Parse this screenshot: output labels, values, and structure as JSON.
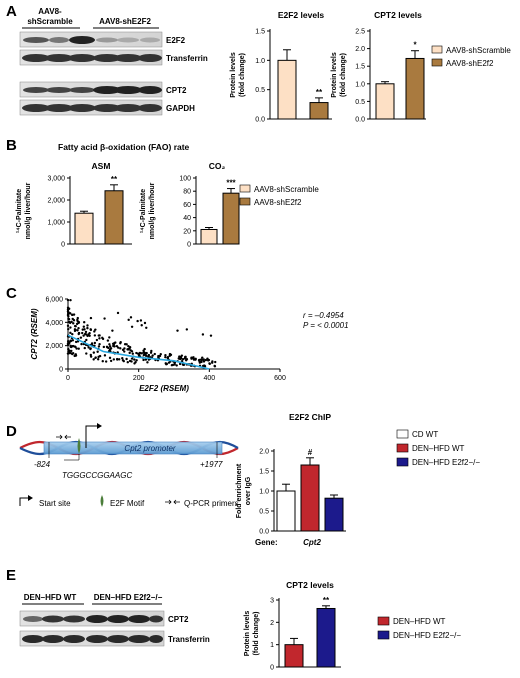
{
  "panels": {
    "A": {
      "letter": "A",
      "blot": {
        "group1": "AAV8-\nshScramble",
        "group1_l1": "AAV8-",
        "group1_l2": "shScramble",
        "group2": "AAV8-shE2F2",
        "bands": [
          "E2F2",
          "Transferrin",
          "CPT2",
          "GAPDH"
        ]
      },
      "legend": [
        "AAV8-shScramble",
        "AAV8-shE2f2"
      ]
    },
    "B": {
      "letter": "B",
      "title": "Fatty acid β-oxidation (FAO) rate",
      "ylabel_l1": "¹⁴C-Palmitate",
      "ylabel_l2": "nmol/g liver/hour",
      "legend": [
        "AAV8-shScramble",
        "AAV8-shE2f2"
      ]
    },
    "C": {
      "letter": "C",
      "r_text": "r = –0.4954",
      "p_text": "P = < 0.0001"
    },
    "D": {
      "letter": "D",
      "promoter_label": "Cpt2 promoter",
      "start": "-824",
      "end": "+1977",
      "motif_seq": "TGGGCCGGAAGC",
      "key": [
        "Start site",
        "E2F Motif",
        "Q-PCR primers"
      ],
      "gene_label": "Gene:",
      "gene": "Cpt2",
      "legend": [
        "CD WT",
        "DEN–HFD WT",
        "DEN–HFD E2f2−/−"
      ]
    },
    "E": {
      "letter": "E",
      "blot": {
        "group1": "DEN–HFD WT",
        "group2": "DEN–HFD E2f2−/−",
        "bands": [
          "CPT2",
          "Transferrin"
        ]
      },
      "legend": [
        "DEN–HFD WT",
        "DEN–HFD E2f2−/−"
      ]
    }
  },
  "colors": {
    "scramble": "#fde0c5",
    "she2f2": "#a97a3f",
    "cd_wt": "#ffffff",
    "den_wt": "#c1272d",
    "den_ko": "#1c1a8c",
    "line": "#29a8e0"
  },
  "chart_data": [
    {
      "id": "A-E2F2",
      "type": "bar",
      "title": "E2F2 levels",
      "ylabel": "Protein levels (fold change)",
      "categories": [
        "AAV8-shScramble",
        "AAV8-shE2f2"
      ],
      "values": [
        1.0,
        0.28
      ],
      "errors": [
        0.18,
        0.08
      ],
      "sig": [
        "",
        "**"
      ],
      "ylim": [
        0,
        1.5
      ],
      "ticks": [
        "0.0",
        "0.5",
        "1.0",
        "1.5"
      ]
    },
    {
      "id": "A-CPT2",
      "type": "bar",
      "title": "CPT2 levels",
      "ylabel": "Protein levels (fold change)",
      "categories": [
        "AAV8-shScramble",
        "AAV8-shE2f2"
      ],
      "values": [
        1.0,
        1.72
      ],
      "errors": [
        0.06,
        0.22
      ],
      "sig": [
        "",
        "*"
      ],
      "ylim": [
        0,
        2.5
      ],
      "ticks": [
        "0.0",
        "0.5",
        "1.0",
        "1.5",
        "2.0",
        "2.5"
      ]
    },
    {
      "id": "B-ASM",
      "type": "bar",
      "title": "ASM",
      "ylabel": "¹⁴C-Palmitate nmol/g liver/hour",
      "categories": [
        "AAV8-shScramble",
        "AAV8-shE2f2"
      ],
      "values": [
        1400,
        2420
      ],
      "errors": [
        90,
        270
      ],
      "sig": [
        "",
        "**"
      ],
      "ylim": [
        0,
        3000
      ],
      "ticks": [
        "0",
        "1,000",
        "2,000",
        "3,000"
      ]
    },
    {
      "id": "B-CO2",
      "type": "bar",
      "title": "CO₂",
      "ylabel": "¹⁴C-Palmitate nmol/g liver/hour",
      "categories": [
        "AAV8-shScramble",
        "AAV8-shE2f2"
      ],
      "values": [
        22,
        77
      ],
      "errors": [
        3,
        7
      ],
      "sig": [
        "",
        "***"
      ],
      "ylim": [
        0,
        100
      ],
      "ticks": [
        "0",
        "20",
        "40",
        "60",
        "80",
        "100"
      ]
    },
    {
      "id": "C",
      "type": "scatter",
      "xlabel": "E2F2 (RSEM)",
      "ylabel": "CPT2 (RSEM)",
      "xlim": [
        0,
        600
      ],
      "ylim": [
        0,
        6000
      ],
      "xticks": [
        "0",
        "200",
        "400",
        "600"
      ],
      "yticks": [
        "0",
        "2,000",
        "4,000",
        "6,000"
      ],
      "n_points": 360,
      "point_color": "#000000",
      "trend_x": [
        0,
        100,
        200,
        300,
        400
      ],
      "trend_y": [
        2900,
        1500,
        1000,
        700,
        0
      ]
    },
    {
      "id": "D",
      "type": "bar",
      "title": "E2F2 ChIP",
      "ylabel": "Fold enrichment over IgG",
      "categories": [
        "CD WT",
        "DEN–HFD WT",
        "DEN–HFD E2f2−/−"
      ],
      "values": [
        1.0,
        1.65,
        0.82
      ],
      "errors": [
        0.17,
        0.18,
        0.08
      ],
      "sig": [
        "",
        "#",
        ""
      ],
      "ylim": [
        0,
        2.0
      ],
      "ticks": [
        "0.0",
        "0.5",
        "1.0",
        "1.5",
        "2.0"
      ]
    },
    {
      "id": "E",
      "type": "bar",
      "title": "CPT2 levels",
      "ylabel": "Protein levels (fold change)",
      "categories": [
        "DEN–HFD WT",
        "DEN–HFD E2f2−/−"
      ],
      "values": [
        1.0,
        2.62
      ],
      "errors": [
        0.28,
        0.12
      ],
      "sig": [
        "",
        "**"
      ],
      "ylim": [
        0,
        3
      ],
      "ticks": [
        "0",
        "1",
        "2",
        "3"
      ]
    }
  ]
}
